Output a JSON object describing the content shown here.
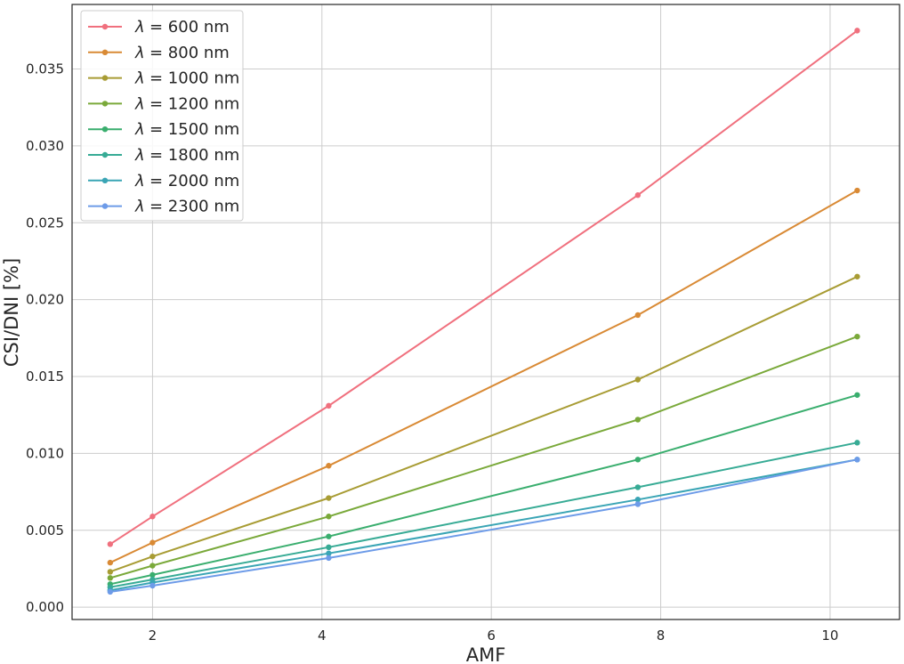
{
  "chart_data": {
    "type": "line",
    "xlabel": "AMF",
    "ylabel": "CSI/DNI [%]",
    "xlim": [
      1.05,
      10.82
    ],
    "ylim": [
      -0.0008,
      0.0392
    ],
    "xticks": [
      2,
      4,
      6,
      8,
      10
    ],
    "xtick_labels": [
      "2",
      "4",
      "6",
      "8",
      "10"
    ],
    "yticks": [
      0.0,
      0.005,
      0.01,
      0.015,
      0.02,
      0.025,
      0.03,
      0.035
    ],
    "ytick_labels": [
      "0.000",
      "0.005",
      "0.010",
      "0.015",
      "0.020",
      "0.025",
      "0.030",
      "0.035"
    ],
    "grid": true,
    "legend_position": "top-left",
    "x": [
      1.5,
      2.0,
      4.08,
      7.73,
      10.32
    ],
    "series": [
      {
        "name": "λ = 600 nm",
        "legend_name": "= 600 nm",
        "color": "#f0707e",
        "values": [
          0.0041,
          0.0059,
          0.0131,
          0.0268,
          0.0375
        ]
      },
      {
        "name": "λ = 800 nm",
        "legend_name": "= 800 nm",
        "color": "#d98a35",
        "values": [
          0.0029,
          0.0042,
          0.0092,
          0.019,
          0.0271
        ]
      },
      {
        "name": "λ = 1000 nm",
        "legend_name": "= 1000 nm",
        "color": "#a89c34",
        "values": [
          0.0023,
          0.0033,
          0.0071,
          0.0148,
          0.0215
        ]
      },
      {
        "name": "λ = 1200 nm",
        "legend_name": "= 1200 nm",
        "color": "#7aa93a",
        "values": [
          0.0019,
          0.0027,
          0.0059,
          0.0122,
          0.0176
        ]
      },
      {
        "name": "λ = 1500 nm",
        "legend_name": "= 1500 nm",
        "color": "#3aae6e",
        "values": [
          0.0015,
          0.0021,
          0.0046,
          0.0096,
          0.0138
        ]
      },
      {
        "name": "λ = 1800 nm",
        "legend_name": "= 1800 nm",
        "color": "#37ab95",
        "values": [
          0.0013,
          0.0018,
          0.0039,
          0.0078,
          0.0107
        ]
      },
      {
        "name": "λ = 2000 nm",
        "legend_name": "= 2000 nm",
        "color": "#3aa5b5",
        "values": [
          0.0011,
          0.0016,
          0.0035,
          0.007,
          0.0096
        ]
      },
      {
        "name": "λ = 2300 nm",
        "legend_name": "= 2300 nm",
        "color": "#6d9be8",
        "values": [
          0.001,
          0.0014,
          0.0032,
          0.0067,
          0.0096
        ]
      }
    ],
    "legend_symbol": "λ"
  }
}
